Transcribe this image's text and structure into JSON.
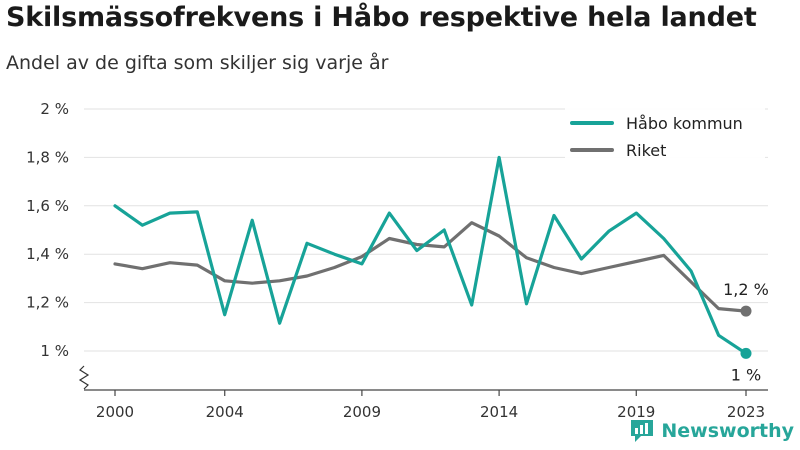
{
  "header": {
    "title": "Skilsmässofrekvens i Håbo respektive hela landet",
    "subtitle": "Andel av de gifta som skiljer sig varje år"
  },
  "brand": {
    "name": "Newsworthy",
    "icon": "newsworthy-logo-icon",
    "color": "#27a69a"
  },
  "chart_data": {
    "type": "line",
    "title": "Skilsmässofrekvens i Håbo respektive hela landet",
    "subtitle": "Andel av de gifta som skiljer sig varje år",
    "xlabel": "",
    "ylabel": "",
    "xlim": [
      2000,
      2023
    ],
    "ylim": [
      0.85,
      2.0
    ],
    "x_ticks": [
      2000,
      2004,
      2009,
      2014,
      2019,
      2023
    ],
    "x_tick_labels": [
      "2000",
      "2004",
      "2009",
      "2014",
      "2019",
      "2023"
    ],
    "y_ticks": [
      1.0,
      1.2,
      1.4,
      1.6,
      1.8,
      2.0
    ],
    "y_tick_labels": [
      "1 %",
      "1,2 %",
      "1,4 %",
      "1,6 %",
      "1,8 %",
      "2 %"
    ],
    "grid": true,
    "legend_position": "top-right",
    "x": [
      2000,
      2001,
      2002,
      2003,
      2004,
      2005,
      2006,
      2007,
      2008,
      2009,
      2010,
      2011,
      2012,
      2013,
      2014,
      2015,
      2016,
      2017,
      2018,
      2019,
      2020,
      2021,
      2022,
      2023
    ],
    "series": [
      {
        "name": "Håbo kommun",
        "color": "#17a398",
        "values": [
          1.6,
          1.52,
          1.57,
          1.575,
          1.15,
          1.54,
          1.115,
          1.445,
          1.4,
          1.36,
          1.57,
          1.415,
          1.5,
          1.19,
          1.8,
          1.195,
          1.56,
          1.38,
          1.495,
          1.57,
          1.465,
          1.33,
          1.065,
          0.99
        ],
        "end_label": "1 %"
      },
      {
        "name": "Riket",
        "color": "#707070",
        "values": [
          1.36,
          1.34,
          1.365,
          1.355,
          1.29,
          1.28,
          1.29,
          1.31,
          1.345,
          1.39,
          1.465,
          1.44,
          1.43,
          1.53,
          1.475,
          1.385,
          1.345,
          1.32,
          1.345,
          1.37,
          1.395,
          1.285,
          1.175,
          1.165
        ],
        "end_label": "1,2 %"
      }
    ]
  }
}
